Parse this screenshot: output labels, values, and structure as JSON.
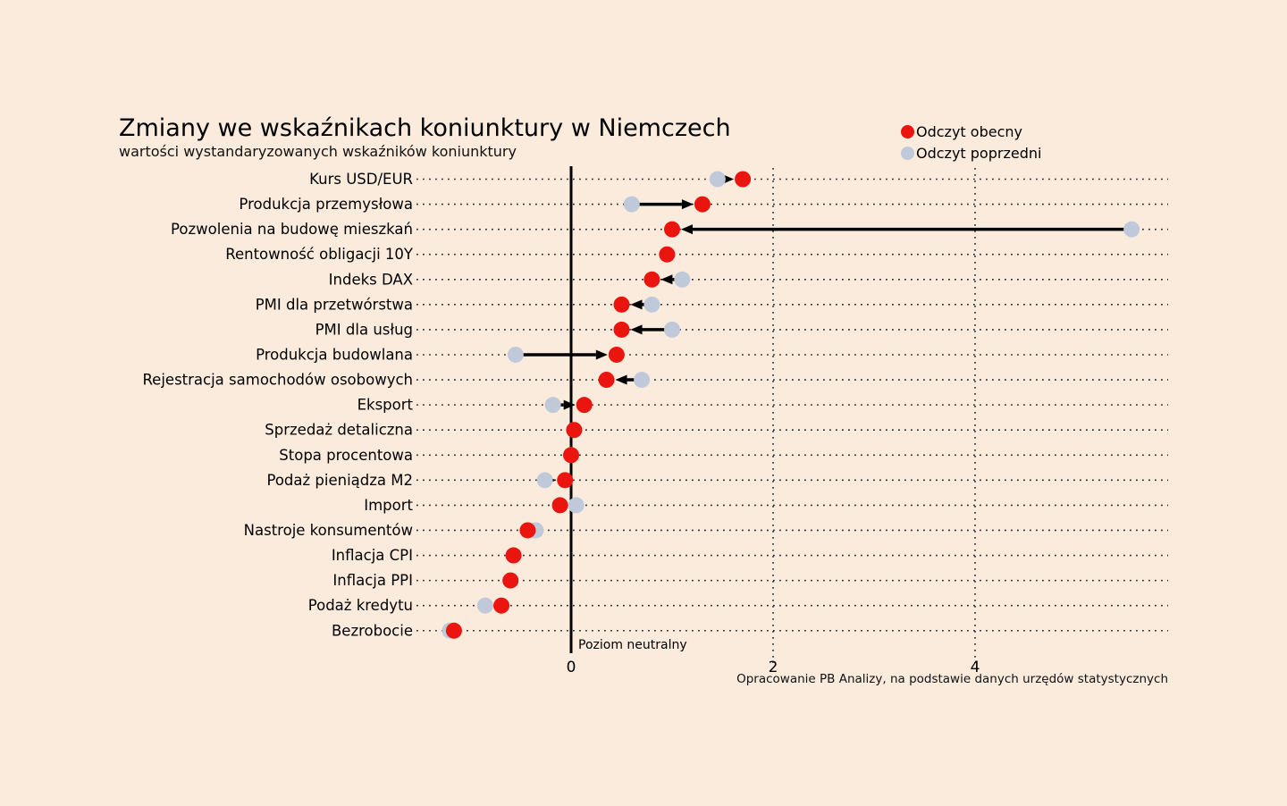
{
  "title": "Zmiany we wskaźnikach koniunktury w Niemczech",
  "subtitle": "wartości wystandaryzowanych wskaźników koniunktury",
  "legend": {
    "current": "Odczyt obecny",
    "previous": "Odczyt poprzedni"
  },
  "neutral_label": "Poziom neutralny",
  "caption": "Opracowanie PB Analizy, na podstawie danych urzędów statystycznych",
  "colors": {
    "background": "#faebdd",
    "current": "#e9150e",
    "previous": "#c0c9da",
    "axis": "#000000",
    "grid": "#2a2a2a",
    "text": "#000000"
  },
  "chart_data": {
    "type": "scatter",
    "subtype": "dumbbell-dot-plot-with-change-arrows",
    "title": "Zmiany we wskaźnikach koniunktury w Niemczech",
    "xlabel": "",
    "ylabel": "",
    "x_ticks": [
      0,
      2,
      4
    ],
    "xlim": [
      -1.6,
      5.9
    ],
    "grid": "dotted horizontal per category, dotted vertical at ticks 2 and 4, solid vertical neutral line at 0",
    "legend_position": "top-right",
    "neutral_line_x": 0,
    "categories": [
      "Kurs USD/EUR",
      "Produkcja przemysłowa",
      "Pozwolenia na budowę mieszkań",
      "Rentowność obligacji 10Y",
      "Indeks DAX",
      "PMI dla przetwórstwa",
      "PMI dla usług",
      "Produkcja budowlana",
      "Rejestracja samochodów osobowych",
      "Eksport",
      "Sprzedaż detaliczna",
      "Stopa procentowa",
      "Podaż pieniądza M2",
      "Import",
      "Nastroje konsumentów",
      "Inflacja CPI",
      "Inflacja PPI",
      "Podaż kredytu",
      "Bezrobocie"
    ],
    "series": [
      {
        "name": "Odczyt obecny",
        "color": "#e9150e",
        "values": [
          1.7,
          1.3,
          1.0,
          0.95,
          0.8,
          0.5,
          0.5,
          0.45,
          0.35,
          0.13,
          0.03,
          0.0,
          -0.06,
          -0.11,
          -0.43,
          -0.57,
          -0.6,
          -0.69,
          -1.16
        ]
      },
      {
        "name": "Odczyt poprzedni",
        "color": "#c0c9da",
        "values": [
          1.45,
          0.6,
          5.55,
          0.95,
          1.1,
          0.8,
          1.0,
          -0.55,
          0.7,
          -0.18,
          0.03,
          0.0,
          -0.26,
          0.05,
          -0.35,
          -0.57,
          -0.6,
          -0.85,
          -1.2
        ]
      }
    ]
  }
}
